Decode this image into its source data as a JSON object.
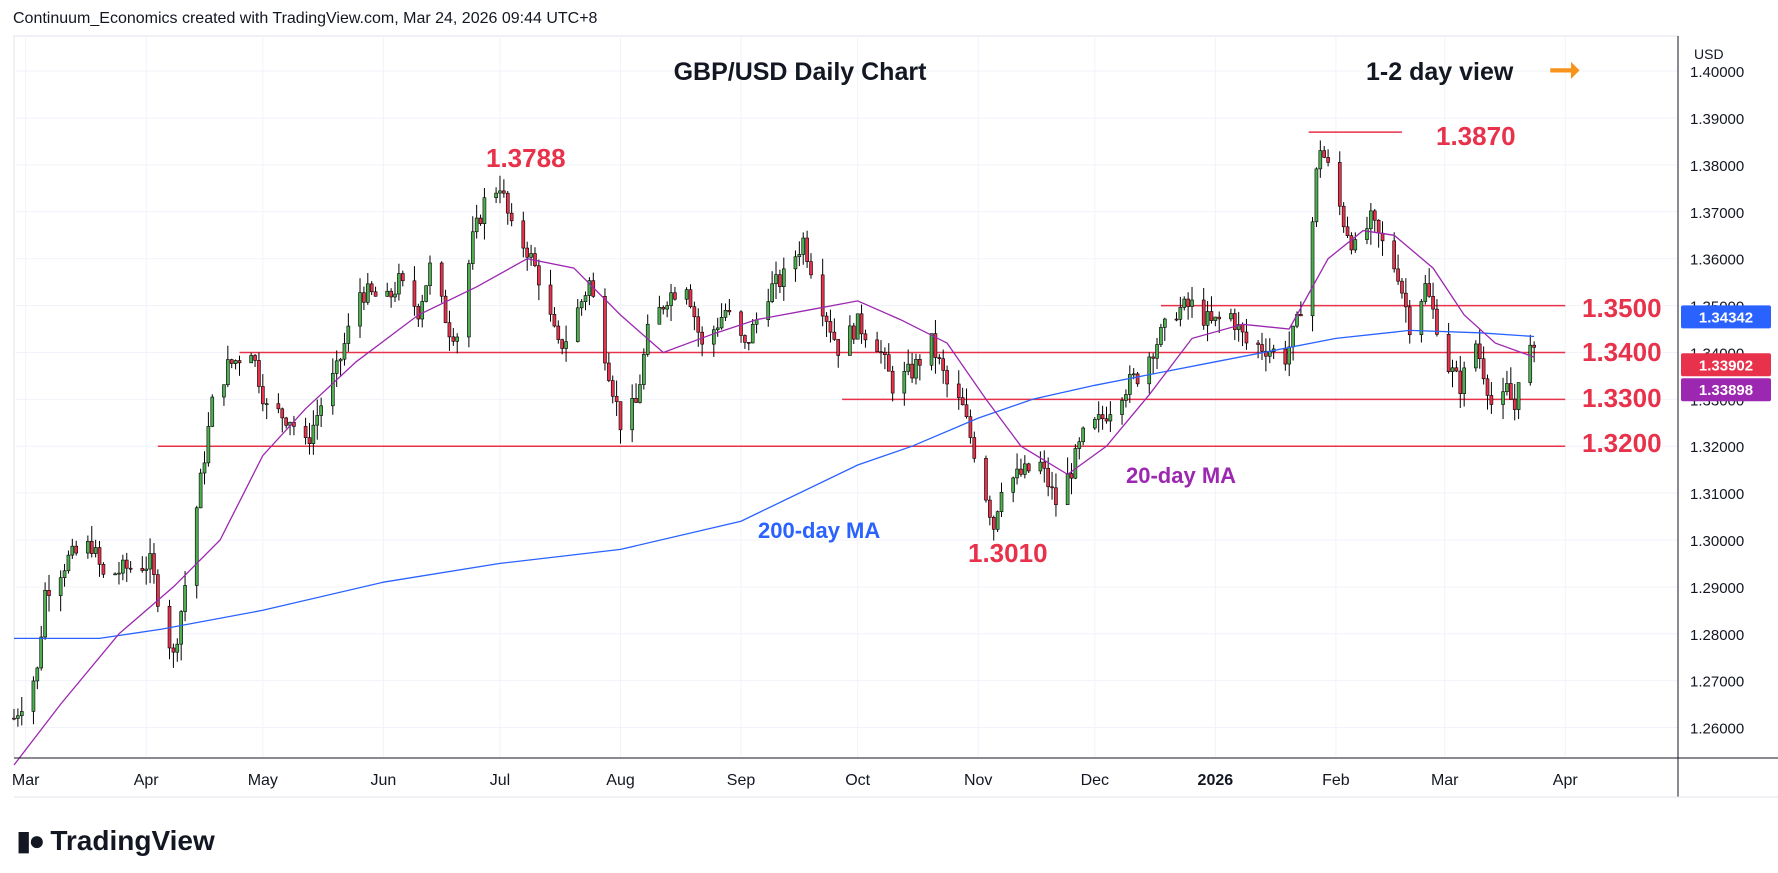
{
  "attribution": "Continuum_Economics created with TradingView.com, Mar 24, 2026 09:44 UTC+8",
  "brand": "TradingView",
  "currency_label": "USD",
  "view_label": "1-2 day view",
  "view_arrow_color": "#f7931a",
  "chart_data": {
    "type": "candlestick",
    "title": "GBP/USD Daily Chart",
    "ylim": [
      1.2535,
      1.4075
    ],
    "yticks": [
      "1.40000",
      "1.39000",
      "1.38000",
      "1.37000",
      "1.36000",
      "1.35000",
      "1.34000",
      "1.33000",
      "1.32000",
      "1.31000",
      "1.30000",
      "1.29000",
      "1.28000",
      "1.27000",
      "1.26000"
    ],
    "ytick_values": [
      1.4,
      1.39,
      1.38,
      1.37,
      1.36,
      1.35,
      1.34,
      1.33,
      1.32,
      1.31,
      1.3,
      1.29,
      1.28,
      1.27,
      1.26
    ],
    "xticks": [
      {
        "label": "Mar",
        "date": "2025-03-01"
      },
      {
        "label": "Apr",
        "date": "2025-04-01"
      },
      {
        "label": "May",
        "date": "2025-05-01"
      },
      {
        "label": "Jun",
        "date": "2025-06-01"
      },
      {
        "label": "Jul",
        "date": "2025-07-01"
      },
      {
        "label": "Aug",
        "date": "2025-08-01"
      },
      {
        "label": "Sep",
        "date": "2025-09-01"
      },
      {
        "label": "Oct",
        "date": "2025-10-01"
      },
      {
        "label": "Nov",
        "date": "2025-11-01"
      },
      {
        "label": "Dec",
        "date": "2025-12-01"
      },
      {
        "label": "2026",
        "date": "2026-01-01"
      },
      {
        "label": "Feb",
        "date": "2026-02-01"
      },
      {
        "label": "Mar",
        "date": "2026-03-01"
      },
      {
        "label": "Apr",
        "date": "2026-04-01"
      }
    ],
    "xlim": [
      "2025-02-26",
      "2026-04-30"
    ],
    "grid": true,
    "up_color": "#4caf50",
    "down_color": "#e8314a",
    "candle_border": "#000000",
    "price_path": [
      [
        "2025-02-26",
        1.262
      ],
      [
        "2025-03-04",
        1.272
      ],
      [
        "2025-03-06",
        1.289
      ],
      [
        "2025-03-12",
        1.296
      ],
      [
        "2025-03-18",
        1.299
      ],
      [
        "2025-03-21",
        1.292
      ],
      [
        "2025-03-27",
        1.294
      ],
      [
        "2025-04-02",
        1.295
      ],
      [
        "2025-04-04",
        1.288
      ],
      [
        "2025-04-08",
        1.275
      ],
      [
        "2025-04-10",
        1.285
      ],
      [
        "2025-04-14",
        1.307
      ],
      [
        "2025-04-18",
        1.329
      ],
      [
        "2025-04-22",
        1.337
      ],
      [
        "2025-04-28",
        1.341
      ],
      [
        "2025-05-02",
        1.328
      ],
      [
        "2025-05-08",
        1.326
      ],
      [
        "2025-05-12",
        1.32
      ],
      [
        "2025-05-16",
        1.329
      ],
      [
        "2025-05-20",
        1.336
      ],
      [
        "2025-05-26",
        1.353
      ],
      [
        "2025-06-02",
        1.351
      ],
      [
        "2025-06-05",
        1.355
      ],
      [
        "2025-06-10",
        1.349
      ],
      [
        "2025-06-13",
        1.358
      ],
      [
        "2025-06-18",
        1.345
      ],
      [
        "2025-06-20",
        1.344
      ],
      [
        "2025-06-24",
        1.364
      ],
      [
        "2025-06-27",
        1.372
      ],
      [
        "2025-07-01",
        1.376
      ],
      [
        "2025-07-04",
        1.366
      ],
      [
        "2025-07-08",
        1.362
      ],
      [
        "2025-07-11",
        1.356
      ],
      [
        "2025-07-16",
        1.341
      ],
      [
        "2025-07-18",
        1.343
      ],
      [
        "2025-07-24",
        1.355
      ],
      [
        "2025-07-28",
        1.34
      ],
      [
        "2025-08-01",
        1.325
      ],
      [
        "2025-08-05",
        1.329
      ],
      [
        "2025-08-08",
        1.344
      ],
      [
        "2025-08-13",
        1.352
      ],
      [
        "2025-08-18",
        1.355
      ],
      [
        "2025-08-22",
        1.341
      ],
      [
        "2025-08-28",
        1.349
      ],
      [
        "2025-09-02",
        1.341
      ],
      [
        "2025-09-08",
        1.353
      ],
      [
        "2025-09-12",
        1.356
      ],
      [
        "2025-09-17",
        1.364
      ],
      [
        "2025-09-22",
        1.35
      ],
      [
        "2025-09-26",
        1.341
      ],
      [
        "2025-10-01",
        1.346
      ],
      [
        "2025-10-06",
        1.342
      ],
      [
        "2025-10-10",
        1.333
      ],
      [
        "2025-10-15",
        1.336
      ],
      [
        "2025-10-20",
        1.342
      ],
      [
        "2025-10-24",
        1.333
      ],
      [
        "2025-10-28",
        1.328
      ],
      [
        "2025-11-02",
        1.313
      ],
      [
        "2025-11-05",
        1.303
      ],
      [
        "2025-11-07",
        1.312
      ],
      [
        "2025-11-12",
        1.314
      ],
      [
        "2025-11-17",
        1.316
      ],
      [
        "2025-11-21",
        1.308
      ],
      [
        "2025-11-25",
        1.315
      ],
      [
        "2025-11-28",
        1.322
      ],
      [
        "2025-12-03",
        1.326
      ],
      [
        "2025-12-08",
        1.332
      ],
      [
        "2025-12-12",
        1.335
      ],
      [
        "2025-12-16",
        1.341
      ],
      [
        "2025-12-22",
        1.349
      ],
      [
        "2025-12-26",
        1.35
      ],
      [
        "2025-12-31",
        1.346
      ],
      [
        "2026-01-05",
        1.348
      ],
      [
        "2026-01-09",
        1.342
      ],
      [
        "2026-01-14",
        1.341
      ],
      [
        "2026-01-19",
        1.339
      ],
      [
        "2026-01-22",
        1.346
      ],
      [
        "2026-01-25",
        1.358
      ],
      [
        "2026-01-27",
        1.378
      ],
      [
        "2026-01-28",
        1.384
      ],
      [
        "2026-01-31",
        1.377
      ],
      [
        "2026-02-03",
        1.368
      ],
      [
        "2026-02-06",
        1.362
      ],
      [
        "2026-02-10",
        1.368
      ],
      [
        "2026-02-13",
        1.363
      ],
      [
        "2026-02-17",
        1.357
      ],
      [
        "2026-02-20",
        1.346
      ],
      [
        "2026-02-24",
        1.354
      ],
      [
        "2026-02-27",
        1.346
      ],
      [
        "2026-03-02",
        1.337
      ],
      [
        "2026-03-05",
        1.333
      ],
      [
        "2026-03-09",
        1.342
      ],
      [
        "2026-03-12",
        1.333
      ],
      [
        "2026-03-14",
        1.325
      ],
      [
        "2026-03-17",
        1.332
      ],
      [
        "2026-03-19",
        1.328
      ],
      [
        "2026-03-21",
        1.343
      ],
      [
        "2026-03-24",
        1.339
      ]
    ],
    "ma200_path": [
      [
        "2025-02-26",
        1.279
      ],
      [
        "2025-03-20",
        1.279
      ],
      [
        "2025-04-05",
        1.281
      ],
      [
        "2025-05-01",
        1.285
      ],
      [
        "2025-06-01",
        1.291
      ],
      [
        "2025-07-01",
        1.295
      ],
      [
        "2025-08-01",
        1.298
      ],
      [
        "2025-09-01",
        1.304
      ],
      [
        "2025-10-01",
        1.316
      ],
      [
        "2025-10-15",
        1.32
      ],
      [
        "2025-11-01",
        1.326
      ],
      [
        "2025-11-15",
        1.33
      ],
      [
        "2025-12-01",
        1.333
      ],
      [
        "2026-01-01",
        1.338
      ],
      [
        "2026-02-01",
        1.343
      ],
      [
        "2026-02-20",
        1.3447
      ],
      [
        "2026-03-10",
        1.3442
      ],
      [
        "2026-03-24",
        1.3434
      ]
    ],
    "ma20_path": [
      [
        "2025-02-26",
        1.252
      ],
      [
        "2025-03-10",
        1.265
      ],
      [
        "2025-03-25",
        1.28
      ],
      [
        "2025-04-08",
        1.29
      ],
      [
        "2025-04-20",
        1.3
      ],
      [
        "2025-05-01",
        1.318
      ],
      [
        "2025-05-12",
        1.328
      ],
      [
        "2025-05-25",
        1.338
      ],
      [
        "2025-06-10",
        1.348
      ],
      [
        "2025-06-25",
        1.354
      ],
      [
        "2025-07-08",
        1.36
      ],
      [
        "2025-07-20",
        1.358
      ],
      [
        "2025-08-01",
        1.348
      ],
      [
        "2025-08-12",
        1.34
      ],
      [
        "2025-08-25",
        1.344
      ],
      [
        "2025-09-05",
        1.347
      ],
      [
        "2025-09-18",
        1.349
      ],
      [
        "2025-10-01",
        1.351
      ],
      [
        "2025-10-12",
        1.347
      ],
      [
        "2025-10-24",
        1.342
      ],
      [
        "2025-11-03",
        1.33
      ],
      [
        "2025-11-12",
        1.32
      ],
      [
        "2025-11-24",
        1.314
      ],
      [
        "2025-12-04",
        1.32
      ],
      [
        "2025-12-15",
        1.331
      ],
      [
        "2025-12-26",
        1.343
      ],
      [
        "2026-01-08",
        1.346
      ],
      [
        "2026-01-20",
        1.345
      ],
      [
        "2026-01-30",
        1.36
      ],
      [
        "2026-02-08",
        1.366
      ],
      [
        "2026-02-16",
        1.365
      ],
      [
        "2026-02-26",
        1.358
      ],
      [
        "2026-03-06",
        1.348
      ],
      [
        "2026-03-14",
        1.342
      ],
      [
        "2026-03-24",
        1.339
      ]
    ],
    "ma200_label": "200-day MA",
    "ma20_label": "20-day MA",
    "ma200_color": "#2962ff",
    "ma20_color": "#9c27b0",
    "levels": [
      {
        "label": "1.3500",
        "value": 1.35,
        "from": "2025-12-18"
      },
      {
        "label": "1.3400",
        "value": 1.34,
        "from": "2025-04-25"
      },
      {
        "label": "1.3300",
        "value": 1.33,
        "from": "2025-09-27"
      },
      {
        "label": "1.3200",
        "value": 1.32,
        "from": "2025-04-04"
      }
    ],
    "level_line_to": "2026-04-01",
    "peak_line": {
      "value": 1.387,
      "from": "2026-01-25",
      "to": "2026-02-18"
    },
    "annotations": [
      {
        "text": "1.3870",
        "value": 1.387
      },
      {
        "text": "1.3788",
        "value": 1.3788
      },
      {
        "text": "1.3010",
        "value": 1.301
      }
    ],
    "price_badges": [
      {
        "text": "1.34342",
        "value": 1.34342,
        "color": "#2962ff"
      },
      {
        "text": "1.33902",
        "value": 1.33902,
        "color": "#e8314a"
      },
      {
        "text": "1.33898",
        "value": 1.33898,
        "color": "#9c27b0"
      }
    ]
  }
}
